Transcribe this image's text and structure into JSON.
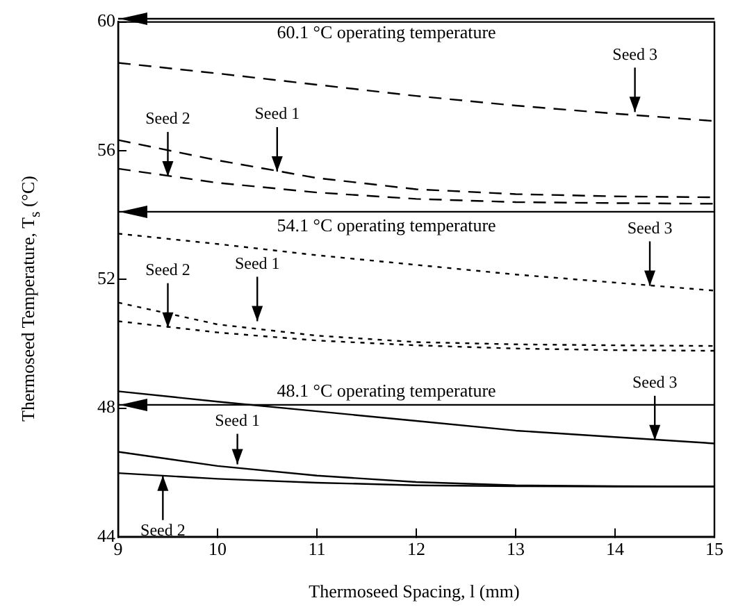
{
  "chart_data": {
    "type": "line",
    "xlabel": "Thermoseed Spacing,  l (mm)",
    "ylabel": "Thermoseed Temperature,  T$_{s}$ (°C)",
    "x": [
      9,
      10,
      11,
      12,
      13,
      14,
      15
    ],
    "xlim": [
      9,
      15
    ],
    "xticks": [
      9,
      10,
      11,
      12,
      13,
      14,
      15
    ],
    "ylim": [
      44,
      60
    ],
    "yticks": [
      44,
      48,
      52,
      56,
      60
    ],
    "grid": false,
    "legend": false,
    "marker": "none",
    "series": [
      {
        "color": "#000000",
        "line_style": "dashed",
        "values": [
          58.73,
          58.4,
          58.05,
          57.7,
          57.4,
          57.15,
          56.92
        ]
      },
      {
        "color": "#000000",
        "line_style": "dashed",
        "values": [
          56.33,
          55.7,
          55.15,
          54.8,
          54.65,
          54.58,
          54.55
        ]
      },
      {
        "color": "#000000",
        "line_style": "dashed",
        "values": [
          55.44,
          55.0,
          54.7,
          54.5,
          54.4,
          54.37,
          54.35
        ]
      },
      {
        "color": "#000000",
        "line_style": "dotted",
        "values": [
          53.42,
          53.1,
          52.75,
          52.45,
          52.15,
          51.9,
          51.65
        ]
      },
      {
        "color": "#000000",
        "line_style": "dotted",
        "values": [
          51.28,
          50.6,
          50.25,
          50.05,
          49.98,
          49.95,
          49.93
        ]
      },
      {
        "color": "#000000",
        "line_style": "dotted",
        "values": [
          50.7,
          50.35,
          50.1,
          49.95,
          49.85,
          49.8,
          49.78
        ]
      },
      {
        "color": "#000000",
        "line_style": "solid",
        "values": [
          48.52,
          48.2,
          47.9,
          47.6,
          47.3,
          47.1,
          46.9
        ]
      },
      {
        "color": "#000000",
        "line_style": "solid",
        "values": [
          46.64,
          46.2,
          45.9,
          45.7,
          45.6,
          45.57,
          45.56
        ]
      },
      {
        "color": "#000000",
        "line_style": "solid",
        "values": [
          45.98,
          45.8,
          45.68,
          45.6,
          45.57,
          45.56,
          45.56
        ]
      }
    ],
    "ref_lines": [
      {
        "axis": "y",
        "value": 60.1,
        "label": "60.1 °C operating temperature",
        "color": "#000000"
      },
      {
        "axis": "y",
        "value": 54.1,
        "label": "54.1 °C operating temperature",
        "color": "#000000"
      },
      {
        "axis": "y",
        "value": 48.1,
        "label": "48.1 °C operating temperature",
        "color": "#000000"
      }
    ],
    "annotations": [
      {
        "text": "Seed 3",
        "x": 14.2,
        "y": 57.2
      },
      {
        "text": "Seed 2",
        "x": 9.5,
        "y": 55.2
      },
      {
        "text": "Seed 1",
        "x": 10.6,
        "y": 55.35
      },
      {
        "text": "Seed 3",
        "x": 14.35,
        "y": 51.8
      },
      {
        "text": "Seed 2",
        "x": 9.5,
        "y": 50.5
      },
      {
        "text": "Seed 1",
        "x": 10.4,
        "y": 50.7
      },
      {
        "text": "Seed 3",
        "x": 14.4,
        "y": 47.0
      },
      {
        "text": "Seed 1",
        "x": 10.2,
        "y": 46.25
      },
      {
        "text": "Seed 2",
        "x": 9.45,
        "y": 45.9
      }
    ]
  }
}
